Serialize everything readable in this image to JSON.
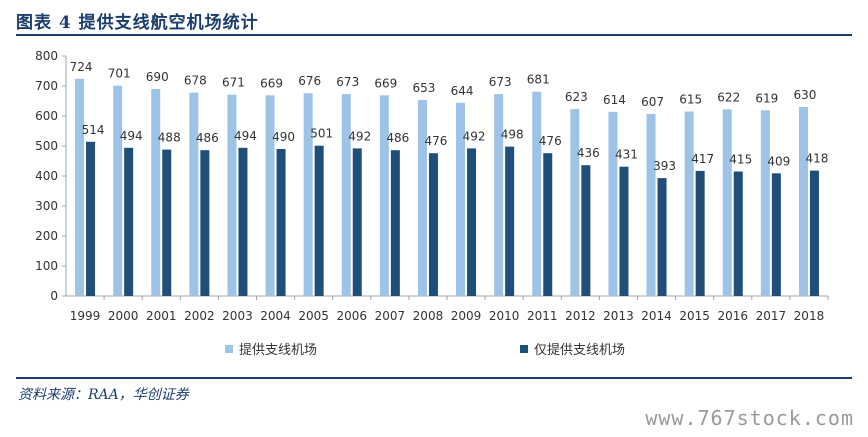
{
  "header": {
    "title": "图表 4   提供支线航空机场统计"
  },
  "chart_data": {
    "type": "bar",
    "categories": [
      "1999",
      "2000",
      "2001",
      "2002",
      "2003",
      "2004",
      "2005",
      "2006",
      "2007",
      "2008",
      "2009",
      "2010",
      "2011",
      "2012",
      "2013",
      "2014",
      "2015",
      "2016",
      "2017",
      "2018"
    ],
    "series": [
      {
        "name": "提供支线机场",
        "color": "#9dc3e6",
        "values": [
          724,
          701,
          690,
          678,
          671,
          669,
          676,
          673,
          669,
          653,
          644,
          673,
          681,
          623,
          614,
          607,
          615,
          622,
          619,
          630
        ]
      },
      {
        "name": "仅提供支线机场",
        "color": "#1f4e79",
        "values": [
          514,
          494,
          488,
          486,
          494,
          490,
          501,
          492,
          486,
          476,
          492,
          498,
          476,
          436,
          431,
          393,
          417,
          415,
          409,
          418
        ]
      }
    ],
    "ylim": [
      0,
      800
    ],
    "yticks": [
      0,
      100,
      200,
      300,
      400,
      500,
      600,
      700,
      800
    ],
    "grid": false,
    "legend_position": "bottom"
  },
  "footer": {
    "source": "资料来源：RAA，华创证券",
    "watermark": "www.767stock.com"
  }
}
